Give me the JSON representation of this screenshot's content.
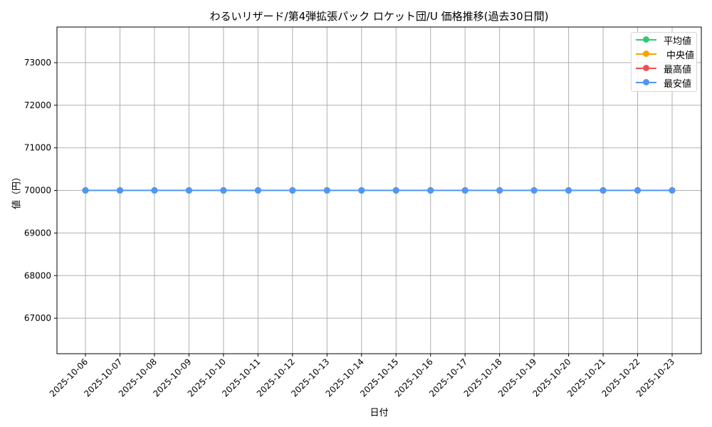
{
  "title": "わるいリザード/第4弾拡張パック ロケット団/U 価格推移(過去30日間)",
  "xlabel": "日付",
  "ylabel": "値（円）",
  "legend": [
    {
      "label": "平均値",
      "color": "#2ecc71"
    },
    {
      "label": "中央値",
      "color": "#f5a300"
    },
    {
      "label": "最高値",
      "color": "#f05050"
    },
    {
      "label": "最安値",
      "color": "#4f96f5"
    }
  ],
  "chart_data": {
    "type": "line",
    "title": "わるいリザード/第4弾拡張パック ロケット団/U 価格推移(過去30日間)",
    "xlabel": "日付",
    "ylabel": "値（円）",
    "categories": [
      "2025-10-06",
      "2025-10-07",
      "2025-10-08",
      "2025-10-09",
      "2025-10-10",
      "2025-10-11",
      "2025-10-12",
      "2025-10-13",
      "2025-10-14",
      "2025-10-15",
      "2025-10-16",
      "2025-10-17",
      "2025-10-18",
      "2025-10-19",
      "2025-10-20",
      "2025-10-21",
      "2025-10-22",
      "2025-10-23"
    ],
    "series": [
      {
        "name": "平均値",
        "color": "#2ecc71",
        "values": [
          70000,
          70000,
          70000,
          70000,
          70000,
          70000,
          70000,
          70000,
          70000,
          70000,
          70000,
          70000,
          70000,
          70000,
          70000,
          70000,
          70000,
          70000
        ]
      },
      {
        "name": "中央値",
        "color": "#f5a300",
        "values": [
          70000,
          70000,
          70000,
          70000,
          70000,
          70000,
          70000,
          70000,
          70000,
          70000,
          70000,
          70000,
          70000,
          70000,
          70000,
          70000,
          70000,
          70000
        ]
      },
      {
        "name": "最高値",
        "color": "#f05050",
        "values": [
          70000,
          70000,
          70000,
          70000,
          70000,
          70000,
          70000,
          70000,
          70000,
          70000,
          70000,
          70000,
          70000,
          70000,
          70000,
          70000,
          70000,
          70000
        ]
      },
      {
        "name": "最安値",
        "color": "#4f96f5",
        "values": [
          70000,
          70000,
          70000,
          70000,
          70000,
          70000,
          70000,
          70000,
          70000,
          70000,
          70000,
          70000,
          70000,
          70000,
          70000,
          70000,
          70000,
          70000
        ]
      }
    ],
    "yticks": [
      67000,
      68000,
      69000,
      70000,
      71000,
      72000,
      73000
    ],
    "ylim": [
      66167,
      73835
    ],
    "grid": true,
    "legend_position": "upper right"
  }
}
